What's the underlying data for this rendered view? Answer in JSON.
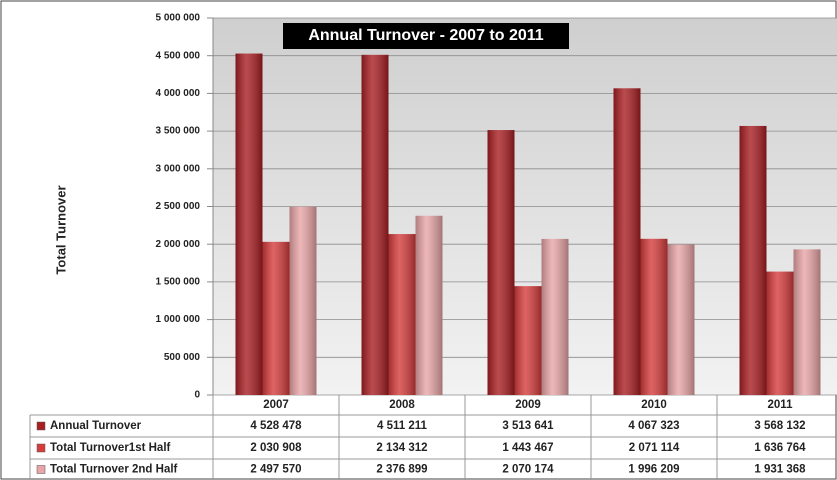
{
  "chart_data": {
    "type": "bar",
    "title": "Annual Turnover - 2007 to 2011",
    "y_label": "Total Turnover",
    "categories": [
      "2007",
      "2008",
      "2009",
      "2010",
      "2011"
    ],
    "series": [
      {
        "name": "Annual Turnover",
        "color": "#a81e22",
        "values": [
          4528478,
          4511211,
          3513641,
          4067323,
          3568132
        ],
        "value_labels": [
          "4 528 478",
          "4 511 211",
          "3 513 641",
          "4 067 323",
          "3 568 132"
        ]
      },
      {
        "name": "Total Turnover1st Half",
        "color": "#d63c3c",
        "values": [
          2030908,
          2134312,
          1443467,
          2071114,
          1636764
        ],
        "value_labels": [
          "2 030 908",
          "2 134 312",
          "1 443 467",
          "2 071 114",
          "1 636 764"
        ]
      },
      {
        "name": "Total Turnover 2nd Half",
        "color": "#e9a5a7",
        "values": [
          2497570,
          2376899,
          2070174,
          1996209,
          1931368
        ],
        "value_labels": [
          "2 497 570",
          "2 376 899",
          "2 070 174",
          "1 996 209",
          "1 931 368"
        ]
      }
    ],
    "ylim": [
      0,
      5000000
    ],
    "yticks": [
      0,
      {
        "value": 500000,
        "label": "500 000"
      },
      {
        "value": 1000000,
        "label": "1 000 000"
      },
      {
        "value": 1500000,
        "label": "1 500 000"
      },
      {
        "value": 2000000,
        "label": "2 000 000"
      },
      {
        "value": 2500000,
        "label": "2 500 000"
      },
      {
        "value": 3000000,
        "label": "3 000 000"
      },
      {
        "value": 3500000,
        "label": "3 500 000"
      },
      {
        "value": 4000000,
        "label": "4 000 000"
      },
      {
        "value": 4500000,
        "label": "4 500 000"
      },
      {
        "value": 5000000,
        "label": "5 000 000"
      }
    ],
    "grid": true
  }
}
